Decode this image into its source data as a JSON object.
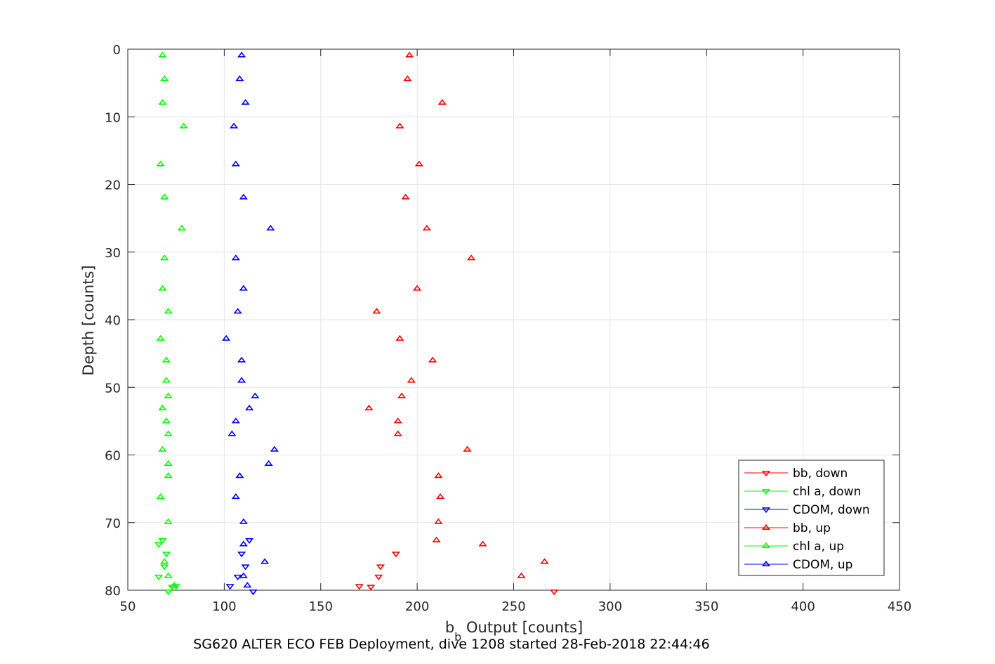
{
  "chart_data": {
    "type": "scatter",
    "title": "SG620 ALTER ECO FEB Deployment, dive 1208 started 28-Feb-2018 22:44:46",
    "xlabel_main": "b",
    "xlabel_sub": "b",
    "xlabel_rest": " Output [counts]",
    "ylabel": "Depth [counts]",
    "xlim": [
      50,
      450
    ],
    "ylim": [
      0,
      80
    ],
    "y_reversed": true,
    "grid": true,
    "xticks": [
      50,
      100,
      150,
      200,
      250,
      300,
      350,
      400,
      450
    ],
    "yticks": [
      0,
      10,
      20,
      30,
      40,
      50,
      60,
      70,
      80
    ],
    "legend_position": "bottom-right",
    "series": [
      {
        "name": "bb, down",
        "color": "#ff0000",
        "marker": "triangle-down",
        "points": [
          [
            271,
            80.2
          ],
          [
            176,
            79.5
          ],
          [
            170,
            79.4
          ],
          [
            180,
            78.0
          ],
          [
            181,
            76.5
          ],
          [
            189,
            74.6
          ]
        ]
      },
      {
        "name": "chl a, down",
        "color": "#00ff00",
        "marker": "triangle-down",
        "points": [
          [
            71,
            80.2
          ],
          [
            73,
            79.5
          ],
          [
            75,
            79.4
          ],
          [
            66,
            78.0
          ],
          [
            69,
            76.5
          ],
          [
            70,
            74.6
          ],
          [
            68,
            72.6
          ],
          [
            66,
            73.2
          ]
        ]
      },
      {
        "name": "CDOM, down",
        "color": "#0000ff",
        "marker": "triangle-down",
        "points": [
          [
            115,
            80.2
          ],
          [
            103,
            79.4
          ],
          [
            107,
            78.0
          ],
          [
            111,
            76.5
          ],
          [
            109,
            74.6
          ],
          [
            113,
            72.6
          ]
        ]
      },
      {
        "name": "bb, up",
        "color": "#ff0000",
        "marker": "triangle-up",
        "points": [
          [
            196,
            0.9
          ],
          [
            195,
            4.4
          ],
          [
            213,
            7.9
          ],
          [
            191,
            11.4
          ],
          [
            201,
            17.0
          ],
          [
            194,
            21.9
          ],
          [
            205,
            26.5
          ],
          [
            228,
            30.9
          ],
          [
            200,
            35.4
          ],
          [
            179,
            38.8
          ],
          [
            191,
            42.8
          ],
          [
            208,
            46.0
          ],
          [
            197,
            49.0
          ],
          [
            192,
            51.3
          ],
          [
            175,
            53.1
          ],
          [
            190,
            55.0
          ],
          [
            190,
            56.9
          ],
          [
            226,
            59.2
          ],
          [
            211,
            63.1
          ],
          [
            212,
            66.2
          ],
          [
            211,
            69.9
          ],
          [
            210,
            72.6
          ],
          [
            234,
            73.2
          ],
          [
            266,
            75.8
          ],
          [
            254,
            77.9
          ]
        ]
      },
      {
        "name": "chl a, up",
        "color": "#00ff00",
        "marker": "triangle-up",
        "points": [
          [
            68,
            0.9
          ],
          [
            69,
            4.4
          ],
          [
            68,
            7.9
          ],
          [
            79,
            11.4
          ],
          [
            67,
            17.0
          ],
          [
            69,
            21.9
          ],
          [
            78,
            26.5
          ],
          [
            69,
            30.9
          ],
          [
            68,
            35.4
          ],
          [
            71,
            38.8
          ],
          [
            67,
            42.8
          ],
          [
            70,
            46.0
          ],
          [
            70,
            49.0
          ],
          [
            71,
            51.3
          ],
          [
            68,
            53.1
          ],
          [
            70,
            55.0
          ],
          [
            71,
            56.9
          ],
          [
            68,
            59.2
          ],
          [
            71,
            61.3
          ],
          [
            71,
            63.1
          ],
          [
            67,
            66.2
          ],
          [
            71,
            69.9
          ],
          [
            69,
            75.8
          ],
          [
            71,
            77.9
          ],
          [
            74,
            79.3
          ]
        ]
      },
      {
        "name": "CDOM, up",
        "color": "#0000ff",
        "marker": "triangle-up",
        "points": [
          [
            109,
            0.9
          ],
          [
            108,
            4.4
          ],
          [
            111,
            7.9
          ],
          [
            105,
            11.4
          ],
          [
            106,
            17.0
          ],
          [
            110,
            21.9
          ],
          [
            124,
            26.5
          ],
          [
            106,
            30.9
          ],
          [
            110,
            35.4
          ],
          [
            107,
            38.8
          ],
          [
            101,
            42.8
          ],
          [
            109,
            46.0
          ],
          [
            109,
            49.0
          ],
          [
            116,
            51.3
          ],
          [
            113,
            53.1
          ],
          [
            106,
            55.0
          ],
          [
            104,
            56.9
          ],
          [
            126,
            59.2
          ],
          [
            123,
            61.3
          ],
          [
            108,
            63.1
          ],
          [
            106,
            66.2
          ],
          [
            110,
            69.9
          ],
          [
            110,
            73.2
          ],
          [
            121,
            75.8
          ],
          [
            110,
            77.9
          ],
          [
            112,
            79.3
          ]
        ]
      }
    ]
  }
}
